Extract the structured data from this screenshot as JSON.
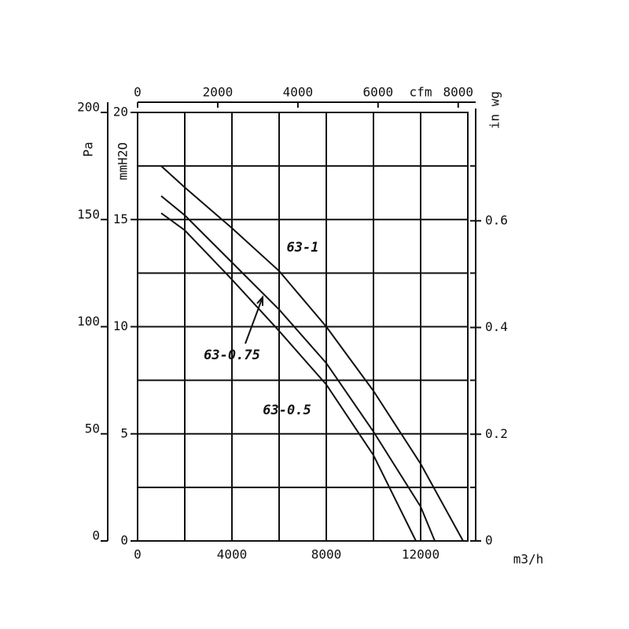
{
  "chart_data": {
    "type": "line",
    "xlabel": "m3/h",
    "xlim": [
      0,
      14000
    ],
    "xticks": [
      0,
      4000,
      8000,
      12000
    ],
    "xminor": [
      2000,
      6000,
      10000
    ],
    "x2label": "cfm",
    "x2lim": [
      0,
      8240
    ],
    "x2ticks": [
      0,
      2000,
      4000,
      6000,
      8000
    ],
    "ylabel": "Pa",
    "ylim": [
      0,
      200
    ],
    "yticks": [
      0,
      50,
      100,
      150,
      200
    ],
    "yminor": [
      25,
      75,
      125,
      175
    ],
    "ymmlabel": "mmH2O",
    "ymmlim": [
      0,
      20
    ],
    "ymmticks": [
      0,
      5,
      10,
      15,
      20
    ],
    "y2label": "in wg",
    "y2lim": [
      0,
      0.803
    ],
    "y2ticks": [
      0,
      0.2,
      0.4,
      0.6
    ],
    "grid": true,
    "color": "#111111",
    "series": [
      {
        "name": "63-1",
        "x": [
          1000,
          2000,
          4000,
          6000,
          8000,
          10000,
          12000,
          13800
        ],
        "values": [
          175,
          165,
          146,
          126,
          100,
          70,
          36,
          0
        ]
      },
      {
        "name": "63-0.75",
        "x": [
          1000,
          2000,
          4000,
          6000,
          8000,
          10000,
          12000,
          12600
        ],
        "values": [
          161,
          152,
          130,
          108,
          83,
          51,
          16,
          0
        ]
      },
      {
        "name": "63-0.5",
        "x": [
          1000,
          2000,
          4000,
          6000,
          8000,
          10000,
          11800
        ],
        "values": [
          153,
          145,
          122,
          98,
          73,
          40,
          0
        ]
      }
    ]
  }
}
